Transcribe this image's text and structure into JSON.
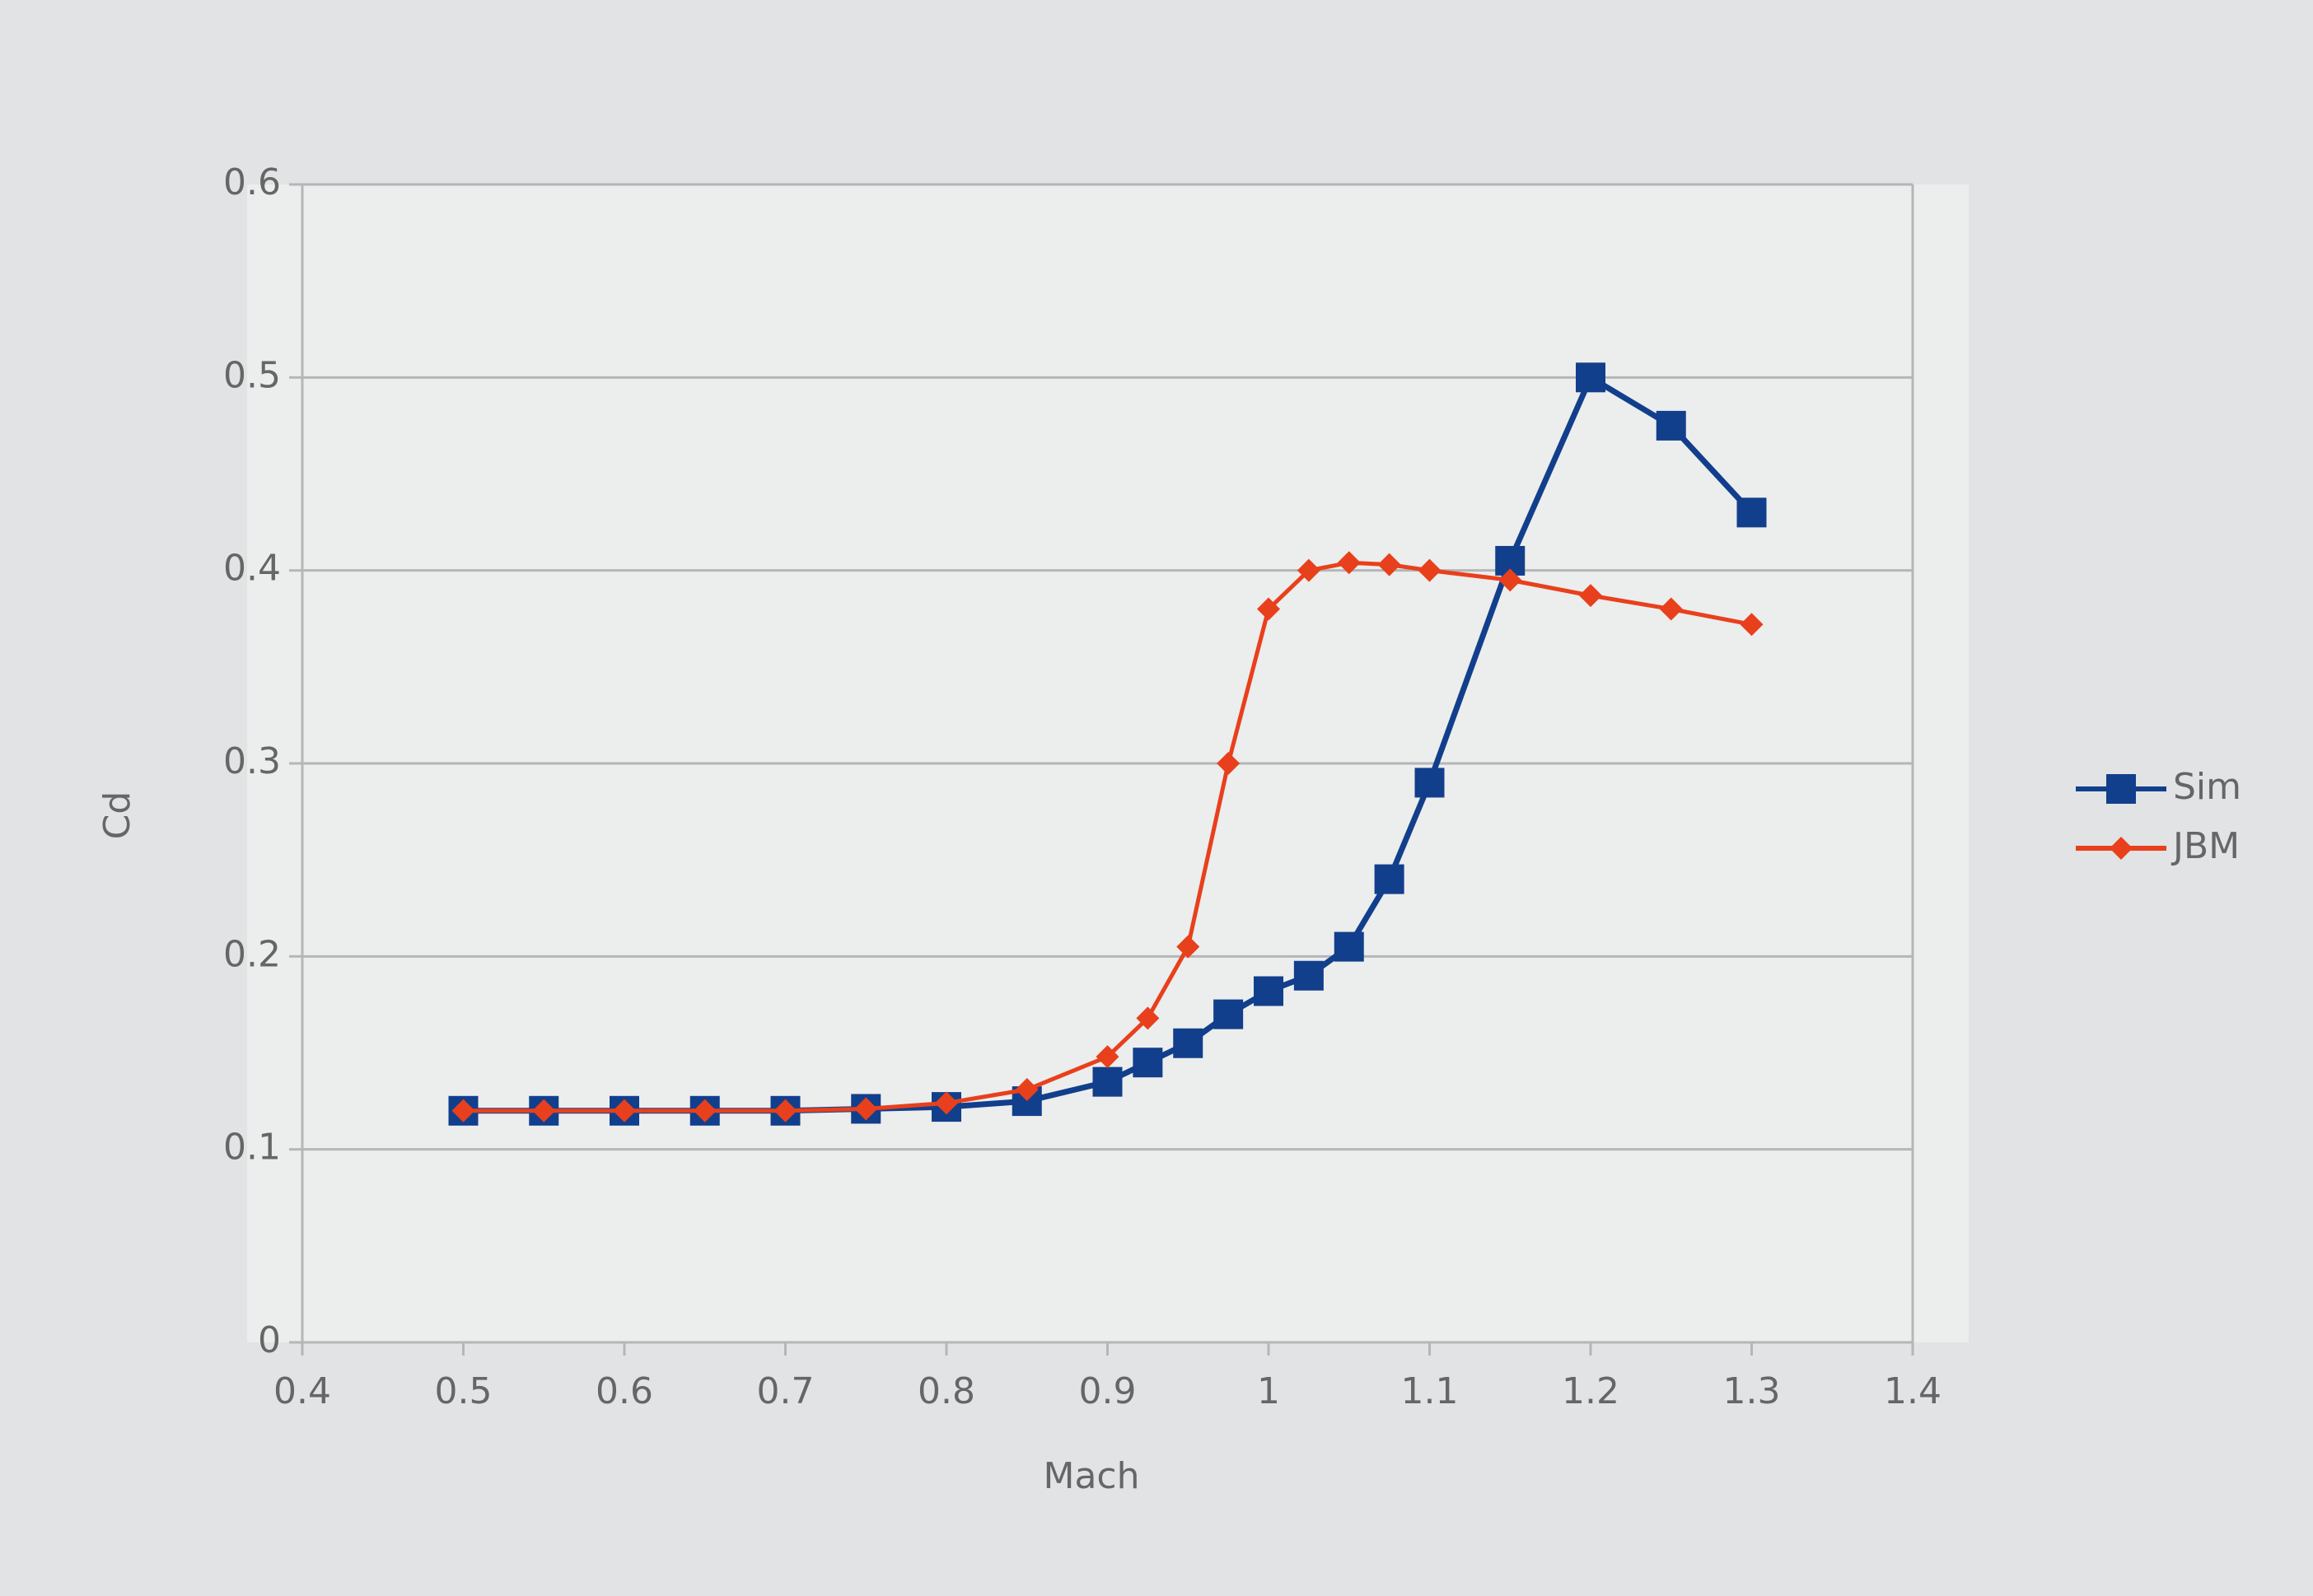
{
  "chart_data": {
    "type": "line",
    "x_label": "Mach",
    "y_label": "Cd",
    "x": [
      0.5,
      0.55,
      0.6,
      0.65,
      0.7,
      0.75,
      0.8,
      0.85,
      0.9,
      0.925,
      0.95,
      0.975,
      1.0,
      1.025,
      1.05,
      1.075,
      1.1,
      1.15,
      1.2,
      1.25,
      1.3
    ],
    "series": [
      {
        "name": "Sim",
        "color": "#123f8c",
        "marker": "square",
        "values": [
          0.12,
          0.12,
          0.12,
          0.12,
          0.12,
          0.121,
          0.122,
          0.125,
          0.135,
          0.145,
          0.155,
          0.17,
          0.182,
          0.19,
          0.205,
          0.24,
          0.29,
          0.405,
          0.5,
          0.475,
          0.43
        ]
      },
      {
        "name": "JBM",
        "color": "#e8401c",
        "marker": "diamond",
        "values": [
          0.12,
          0.12,
          0.12,
          0.12,
          0.12,
          0.121,
          0.124,
          0.131,
          0.148,
          0.168,
          0.205,
          0.3,
          0.38,
          0.4,
          0.404,
          0.403,
          0.4,
          0.395,
          0.387,
          0.38,
          0.372
        ]
      }
    ],
    "xlim": [
      0.4,
      1.4
    ],
    "xticks": [
      0.4,
      0.5,
      0.6,
      0.7,
      0.8,
      0.9,
      1,
      1.1,
      1.2,
      1.3,
      1.4
    ],
    "ylim": [
      0,
      0.6
    ],
    "yticks": [
      0,
      0.1,
      0.2,
      0.3,
      0.4,
      0.5,
      0.6
    ],
    "grid": true,
    "legend": "right"
  }
}
